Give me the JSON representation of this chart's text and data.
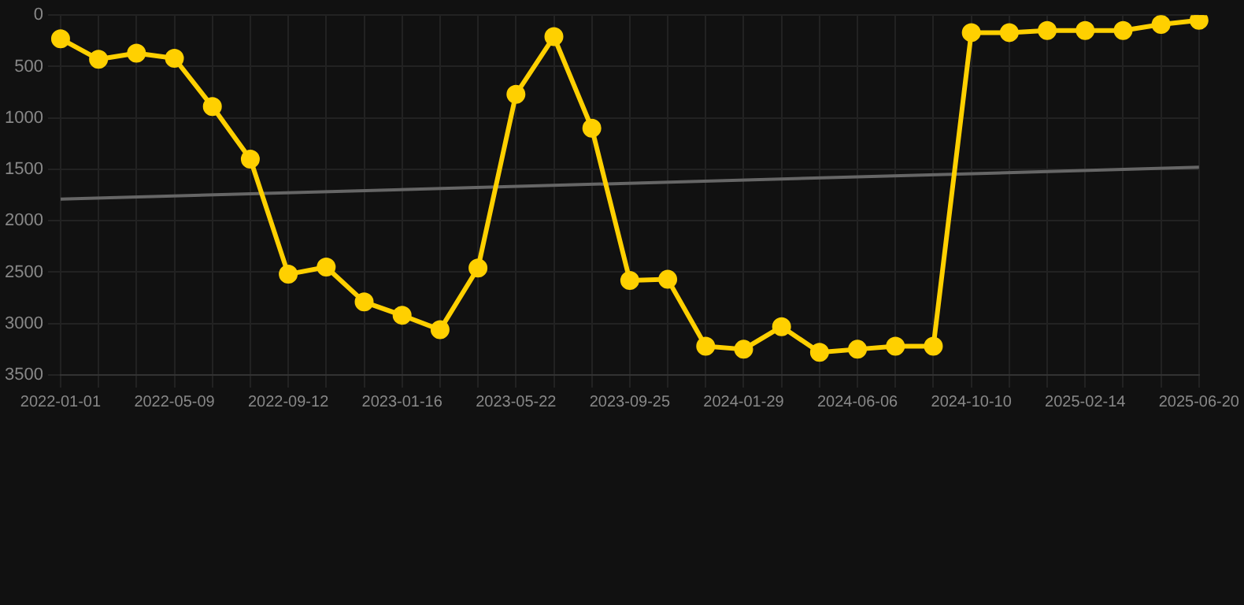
{
  "chart_data": {
    "type": "line",
    "categories": [
      "2022-01-01",
      null,
      null,
      "2022-05-09",
      null,
      null,
      "2022-09-12",
      null,
      null,
      "2023-01-16",
      null,
      null,
      "2023-05-22",
      null,
      null,
      "2023-09-25",
      null,
      null,
      "2024-01-29",
      null,
      null,
      "2024-06-06",
      null,
      null,
      "2024-10-10",
      null,
      null,
      "2025-02-14",
      null,
      null,
      "2025-06-20"
    ],
    "series": [
      {
        "color": "#ffd000",
        "values": [
          230,
          430,
          370,
          420,
          890,
          1400,
          2520,
          2450,
          2790,
          2920,
          3060,
          2460,
          770,
          210,
          1100,
          2580,
          2570,
          3220,
          3250,
          3030,
          3280,
          3250,
          3220,
          3220,
          170,
          170,
          150,
          150,
          150,
          90,
          50
        ]
      },
      {
        "color": "#666666",
        "marker": "none",
        "values": [
          1790,
          null,
          null,
          null,
          null,
          null,
          null,
          null,
          null,
          null,
          null,
          null,
          null,
          null,
          null,
          null,
          null,
          null,
          null,
          null,
          null,
          null,
          null,
          null,
          null,
          null,
          null,
          null,
          null,
          null,
          1480
        ]
      }
    ],
    "ylim": [
      3500,
      0
    ],
    "yticks": [
      0,
      500,
      1000,
      1500,
      2000,
      2500,
      3000,
      3500
    ],
    "grid": true,
    "marker": "circle",
    "line_style": "solid",
    "legend": false
  }
}
